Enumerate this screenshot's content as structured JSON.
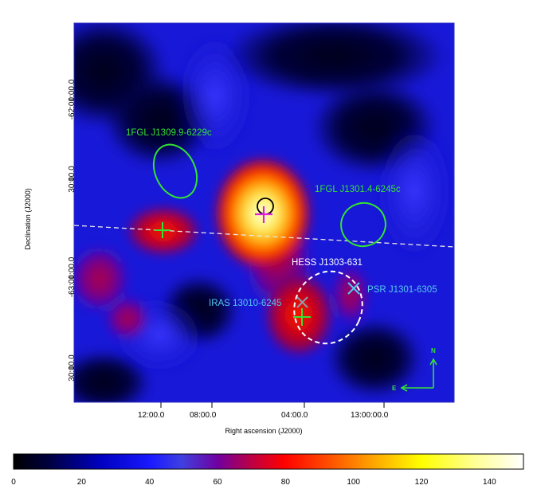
{
  "colors": {
    "region_label": "#33e333",
    "hess_label": "#ffffff",
    "pulsar_label": "#55c8ee",
    "marker_green": "#33e333",
    "marker_magenta": "#e020e0",
    "marker_grey": "#8aa0b0",
    "galactic_plane": "#e8e8e8",
    "frame": "#3030c0"
  },
  "axes": {
    "xlabel": "Right ascension (J2000)",
    "ylabel": "Declination (J2000)",
    "x_ticks": [
      "12:00.0",
      "08:00.0",
      "04:00.0",
      "13:00:00.0"
    ],
    "y_ticks": [
      "-62:00:00.0",
      "30:00.0",
      "-63:00:00.0",
      "30:00.0"
    ]
  },
  "labels": {
    "fgl1": "1FGL J1309.9-6229c",
    "fgl2": "1FGL J1301.4-6245c",
    "hess": "HESS J1303-631",
    "psr": "PSR J1301-6305",
    "iras": "IRAS 13010-6245"
  },
  "compass": {
    "north": "N",
    "east": "E"
  },
  "colorbar": {
    "ticks": [
      "0",
      "20",
      "40",
      "60",
      "80",
      "100",
      "120",
      "140"
    ],
    "min": 0,
    "max": 150
  },
  "icons": {
    "fermi_position": "green-plus-icon",
    "peak_position": "magenta-plus-icon",
    "psr_marker": "cyan-cross-icon",
    "iras_marker": "grey-cross-icon"
  }
}
